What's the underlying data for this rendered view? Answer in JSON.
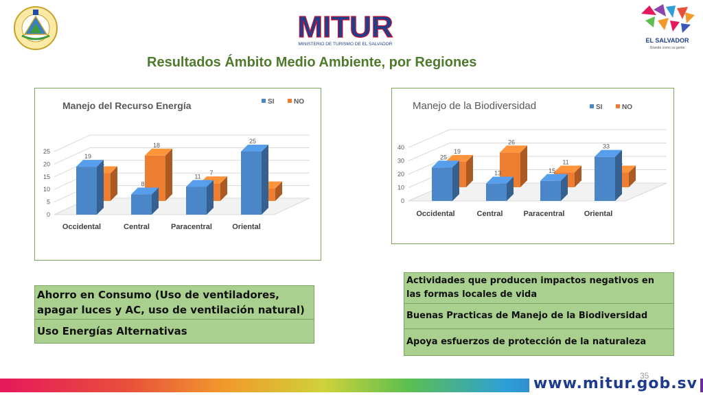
{
  "header": {
    "title": "Resultados Ámbito Medio Ambiente, por Regiones",
    "mitur_logo_text": "MITUR",
    "mitur_logo_subtitle": "MINISTERIO DE TURISMO DE EL SALVADOR",
    "country_logo_text": "EL SALVADOR",
    "country_logo_tagline": "Grande como su gente",
    "coat_of_arms_text": "REPUBLICA DE EL SALVADOR EN LA AMERICA CENTRAL"
  },
  "colors": {
    "si": "#4a86c8",
    "no": "#ed7d31",
    "title_green": "#4e7a2c",
    "table_fill": "#a9d08e"
  },
  "chart_data": [
    {
      "type": "bar",
      "title": "Manejo del Recurso Energía",
      "categories": [
        "Occidental",
        "Central",
        "Paracentral",
        "Oriental"
      ],
      "series": [
        {
          "name": "SI",
          "values": [
            19,
            8,
            11,
            25
          ]
        },
        {
          "name": "NO",
          "values": [
            11,
            18,
            7,
            5
          ]
        }
      ],
      "ylim": [
        0,
        25
      ],
      "yticks": [
        0,
        5,
        10,
        15,
        20,
        25
      ],
      "legend": "top-right",
      "grid": true,
      "style": "3d-clustered-column"
    },
    {
      "type": "bar",
      "title": "Manejo de la Biodiversidad",
      "categories": [
        "Occidental",
        "Central",
        "Paracentral",
        "Oriental"
      ],
      "series": [
        {
          "name": "SI",
          "values": [
            25,
            13,
            15,
            33
          ]
        },
        {
          "name": "NO",
          "values": [
            19,
            26,
            11,
            11
          ]
        }
      ],
      "ylim": [
        0,
        40
      ],
      "yticks": [
        0,
        10,
        20,
        30,
        40
      ],
      "legend": "top-right",
      "grid": true,
      "style": "3d-clustered-column"
    }
  ],
  "table_left": {
    "rows": [
      "Ahorro en Consumo (Uso de ventiladores, apagar luces y AC, uso de ventilación natural)",
      "Uso Energías Alternativas"
    ]
  },
  "table_right": {
    "rows": [
      "Actividades que producen impactos negativos en las formas locales de vida",
      "Buenas Practicas de Manejo de la Biodiversidad",
      "Apoya esfuerzos de protección de la naturaleza"
    ]
  },
  "footer": {
    "url": "www.mitur.gob.sv",
    "page_number": "35"
  }
}
